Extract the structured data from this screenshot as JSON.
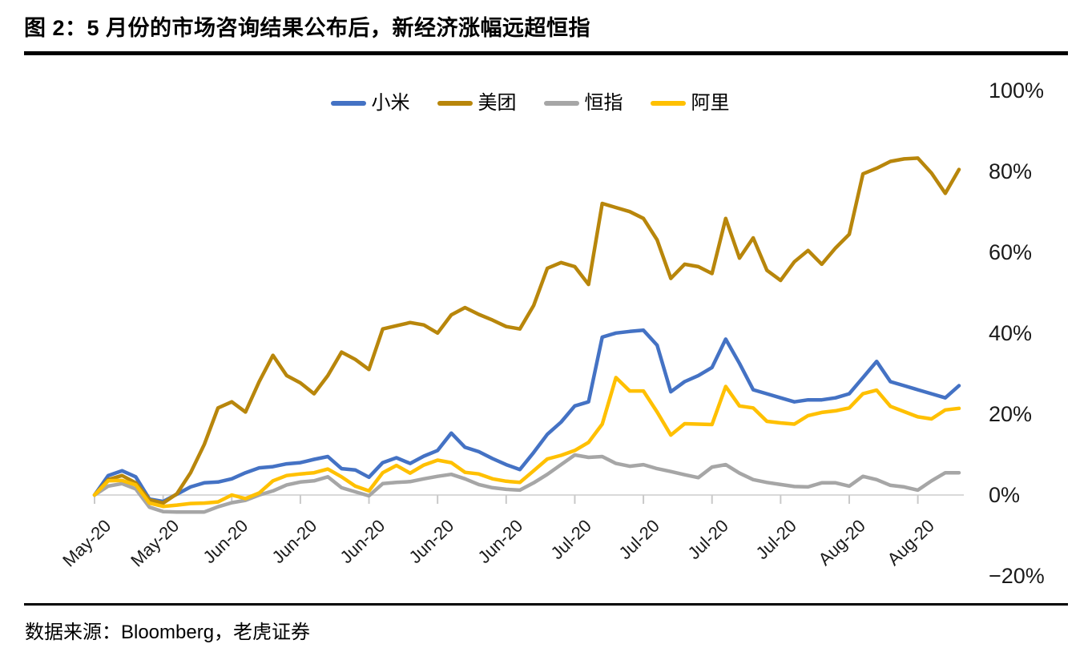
{
  "title": "图 2：5 月份的市场咨询结果公布后，新经济涨幅远超恒指",
  "source": "数据来源：Bloomberg，老虎证券",
  "colors": {
    "xiaomi_blue": "#4472C4",
    "meituan_gold": "#B8860B",
    "hsi_gray": "#A6A6A6",
    "ali_yellow": "#FFC000",
    "axis_line": "#D9D9D9",
    "tick_mark": "#C9C9C9",
    "rule_black": "#000000"
  },
  "chart_data": {
    "type": "line",
    "title": "图 2：5 月份的市场咨询结果公布后，新经济涨幅远超恒指",
    "xlabel": "",
    "ylabel": "",
    "y_unit": "%",
    "ylim": [
      -20,
      100
    ],
    "y_tick_step": 20,
    "y_ticks": [
      "100%",
      "80%",
      "60%",
      "40%",
      "20%",
      "0%",
      "−20%"
    ],
    "x_tick_labels": [
      "May-20",
      "May-20",
      "Jun-20",
      "Jun-20",
      "Jun-20",
      "Jun-20",
      "Jun-20",
      "Jul-20",
      "Jul-20",
      "Jul-20",
      "Jul-20",
      "Aug-20",
      "Aug-20"
    ],
    "x_ticks_every_n_points": 5,
    "grid": "zero-line-only",
    "legend_position": "top-center",
    "x_label_rotation_deg": -44,
    "series": [
      {
        "id": "xiaomi",
        "name": "小米",
        "color": "#4472C4",
        "values": [
          0,
          4.8,
          6,
          4.5,
          -1,
          -1.6,
          0.2,
          2,
          3,
          3.2,
          4,
          5.5,
          6.7,
          7,
          7.7,
          8,
          8.8,
          9.5,
          6.5,
          6.2,
          4.4,
          8,
          9.2,
          7.8,
          9.6,
          11,
          15.3,
          11.8,
          10.7,
          9,
          7.5,
          6.3,
          10.5,
          15,
          18,
          22,
          23,
          39,
          40,
          40.4,
          40.7,
          37,
          25.5,
          28,
          29.5,
          31.5,
          38.5,
          32.5,
          26,
          25,
          24,
          23,
          23.5,
          23.5,
          24,
          25,
          29,
          33,
          28,
          27,
          26,
          25,
          24,
          27
        ]
      },
      {
        "id": "meituan",
        "name": "美团",
        "color": "#B8860B",
        "values": [
          0,
          3.8,
          4.8,
          3,
          -1.2,
          -2,
          0.3,
          5.5,
          12.5,
          21.5,
          23,
          20.5,
          28,
          34.5,
          29.5,
          27.7,
          25,
          29.5,
          35.3,
          33.5,
          31,
          41,
          41.8,
          42.6,
          42,
          40,
          44.5,
          46.3,
          44.6,
          43.2,
          41.6,
          41,
          46.8,
          56,
          57.4,
          56.4,
          52,
          72,
          71,
          70,
          68.3,
          63,
          53.5,
          57,
          56.4,
          54.7,
          68.3,
          58.5,
          63.5,
          55.5,
          53,
          57.6,
          60.4,
          57,
          61,
          64.4,
          79.3,
          80.7,
          82.4,
          83,
          83.2,
          79.5,
          74.5,
          80.4
        ]
      },
      {
        "id": "hsi",
        "name": "恒指",
        "color": "#A6A6A6",
        "values": [
          0,
          2.2,
          2.8,
          1.5,
          -3,
          -4.1,
          -4.2,
          -4.2,
          -4.2,
          -2.9,
          -1.9,
          -1.3,
          0,
          1,
          2.5,
          3.2,
          3.5,
          4.5,
          1.8,
          0.8,
          -0.2,
          2.8,
          3.1,
          3.3,
          4,
          4.6,
          5.1,
          4,
          2.6,
          1.8,
          1.4,
          1.2,
          3,
          5.1,
          7.5,
          9.9,
          9.3,
          9.5,
          7.8,
          7.1,
          7.5,
          6.5,
          5.8,
          5,
          4.3,
          6.9,
          7.5,
          5.4,
          3.8,
          3.1,
          2.6,
          2.1,
          2,
          3,
          3,
          2.2,
          4.6,
          3.8,
          2.4,
          2,
          1.2,
          3.5,
          5.5,
          5.5
        ]
      },
      {
        "id": "ali",
        "name": "阿里",
        "color": "#FFC000",
        "values": [
          0,
          3.5,
          3.6,
          2.5,
          -2,
          -2.8,
          -2.5,
          -2.1,
          -2,
          -1.7,
          0,
          -0.9,
          0.5,
          3.5,
          4.8,
          5.2,
          5.5,
          6.4,
          4.5,
          2.2,
          1,
          5.5,
          7.3,
          5.4,
          7.4,
          8.6,
          8,
          5.6,
          5.2,
          4,
          3.4,
          3.1,
          6,
          8.9,
          9.8,
          11,
          13,
          17.5,
          29,
          25.7,
          25.7,
          20.5,
          14.8,
          17.6,
          17.5,
          17.4,
          26.8,
          22,
          21.5,
          18.2,
          17.8,
          17.5,
          19.6,
          20.4,
          20.8,
          21.5,
          25,
          25.9,
          21.9,
          20.6,
          19.3,
          18.8,
          21,
          21.4
        ]
      }
    ]
  }
}
